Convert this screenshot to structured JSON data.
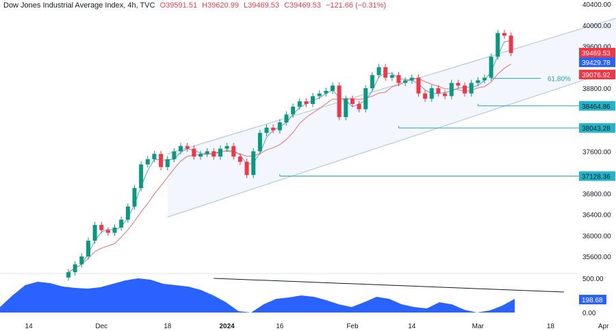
{
  "header": {
    "title": "Dow Jones Industrial Average Index, 4h, TVC",
    "open": "O39591.51",
    "high": "H39620.99",
    "low": "L39469.53",
    "close": "C39469.53",
    "change": "−121.66 (−0.31%)"
  },
  "colors": {
    "up": "#089981",
    "down": "#f23645",
    "channel": "#a9c1e0",
    "level": "#22a5b5",
    "area": "#2962ff",
    "ma_fast": "#5b9bd5",
    "ma_slow": "#e57373"
  },
  "chart_data": {
    "type": "candlestick",
    "price_axis": {
      "ticks": [
        40400,
        40000,
        39600,
        38800,
        37600,
        36800,
        36400,
        36000,
        35600
      ],
      "range": [
        35600,
        40400
      ]
    },
    "x_ticks": [
      {
        "label": "14",
        "i": -6
      },
      {
        "label": "Dec",
        "i": 5
      },
      {
        "label": "18",
        "i": 15
      },
      {
        "label": "2024",
        "i": 24
      },
      {
        "label": "16",
        "i": 32
      },
      {
        "label": "Feb",
        "i": 43
      },
      {
        "label": "14",
        "i": 52
      },
      {
        "label": "Mar",
        "i": 62
      },
      {
        "label": "18",
        "i": 73
      },
      {
        "label": "Apr",
        "i": 81
      }
    ],
    "closes": [
      35300,
      35450,
      35600,
      35900,
      36200,
      36100,
      36050,
      36150,
      36300,
      36550,
      36900,
      37350,
      37450,
      37550,
      37300,
      37450,
      37600,
      37700,
      37650,
      37500,
      37550,
      37600,
      37500,
      37650,
      37700,
      37500,
      37400,
      37150,
      37600,
      37950,
      38050,
      38000,
      38150,
      38300,
      38450,
      38550,
      38500,
      38650,
      38700,
      38750,
      38850,
      38250,
      38600,
      38500,
      38400,
      38800,
      39050,
      39200,
      39000,
      39050,
      38900,
      38950,
      39000,
      38700,
      38600,
      38800,
      38700,
      38650,
      38900,
      38850,
      38700,
      38900,
      38950,
      39000,
      39400,
      39850,
      39800,
      39470
    ],
    "price_labels": [
      {
        "value": "39469.53",
        "color": "#f23645"
      },
      {
        "value": "39429.78",
        "color": "#2962ff"
      },
      {
        "value": "39076.92",
        "color": "#f23645"
      }
    ],
    "levels": [
      {
        "value": 38464.86,
        "label": "38464.86",
        "start": 62
      },
      {
        "value": 38043.28,
        "label": "38043.28",
        "start": 50
      },
      {
        "value": 37128.36,
        "label": "37128.36",
        "start": 32
      }
    ],
    "fib": {
      "label": "61.80%",
      "value": 39000
    },
    "channel": {
      "upper": [
        [
          15,
          37550
        ],
        [
          90,
          40400
        ]
      ],
      "lower": [
        [
          15,
          36350
        ],
        [
          90,
          39450
        ]
      ]
    },
    "indicator": {
      "ticks": [
        "500.00",
        "0.00"
      ],
      "current": "198.68",
      "range": [
        0,
        500
      ],
      "trend": [
        [
          22,
          500
        ],
        [
          75,
          300
        ]
      ],
      "values": [
        80,
        250,
        400,
        450,
        430,
        380,
        360,
        350,
        370,
        420,
        470,
        500,
        480,
        420,
        400,
        380,
        330,
        250,
        150,
        20,
        0,
        120,
        200,
        220,
        250,
        230,
        180,
        120,
        80,
        150,
        230,
        200,
        120,
        80,
        60,
        150,
        120,
        40,
        0,
        30,
        100,
        200
      ]
    }
  }
}
